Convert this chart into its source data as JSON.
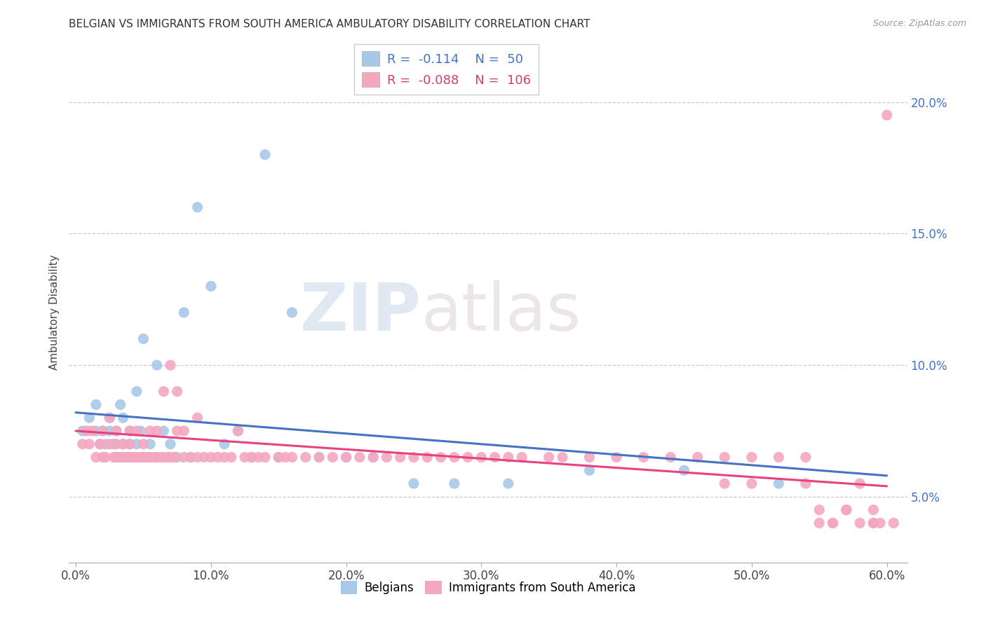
{
  "title": "BELGIAN VS IMMIGRANTS FROM SOUTH AMERICA AMBULATORY DISABILITY CORRELATION CHART",
  "source": "Source: ZipAtlas.com",
  "ylabel_label": "Ambulatory Disability",
  "watermark_zip": "ZIP",
  "watermark_atlas": "atlas",
  "xlim": [
    -0.005,
    0.615
  ],
  "ylim": [
    0.025,
    0.215
  ],
  "xtick_values": [
    0.0,
    0.1,
    0.2,
    0.3,
    0.4,
    0.5,
    0.6
  ],
  "ytick_values": [
    0.05,
    0.1,
    0.15,
    0.2
  ],
  "belgian_color": "#a8c8e8",
  "sa_color": "#f4a8c0",
  "belgian_R": -0.114,
  "belgian_N": 50,
  "sa_R": -0.088,
  "sa_N": 106,
  "belgian_line_color": "#4472c4",
  "sa_line_color": "#e84080",
  "legend_label_1": "Belgians",
  "legend_label_2": "Immigrants from South America",
  "belgian_points_x": [
    0.005,
    0.01,
    0.015,
    0.015,
    0.018,
    0.02,
    0.022,
    0.025,
    0.025,
    0.028,
    0.03,
    0.03,
    0.032,
    0.033,
    0.035,
    0.035,
    0.038,
    0.04,
    0.04,
    0.042,
    0.045,
    0.045,
    0.048,
    0.05,
    0.05,
    0.055,
    0.06,
    0.06,
    0.065,
    0.07,
    0.075,
    0.08,
    0.085,
    0.09,
    0.1,
    0.11,
    0.12,
    0.13,
    0.14,
    0.15,
    0.16,
    0.18,
    0.2,
    0.22,
    0.25,
    0.28,
    0.32,
    0.38,
    0.45,
    0.52
  ],
  "belgian_points_y": [
    0.075,
    0.08,
    0.075,
    0.085,
    0.07,
    0.075,
    0.07,
    0.075,
    0.08,
    0.07,
    0.065,
    0.075,
    0.065,
    0.085,
    0.07,
    0.08,
    0.065,
    0.07,
    0.075,
    0.065,
    0.07,
    0.09,
    0.075,
    0.065,
    0.11,
    0.07,
    0.065,
    0.1,
    0.075,
    0.07,
    0.065,
    0.12,
    0.065,
    0.16,
    0.13,
    0.07,
    0.075,
    0.065,
    0.18,
    0.065,
    0.12,
    0.065,
    0.065,
    0.065,
    0.055,
    0.055,
    0.055,
    0.06,
    0.06,
    0.055
  ],
  "sa_points_x": [
    0.005,
    0.008,
    0.01,
    0.012,
    0.015,
    0.018,
    0.02,
    0.02,
    0.022,
    0.025,
    0.025,
    0.028,
    0.03,
    0.03,
    0.03,
    0.033,
    0.035,
    0.035,
    0.038,
    0.04,
    0.04,
    0.04,
    0.043,
    0.045,
    0.045,
    0.048,
    0.05,
    0.05,
    0.053,
    0.055,
    0.055,
    0.058,
    0.06,
    0.06,
    0.063,
    0.065,
    0.065,
    0.068,
    0.07,
    0.07,
    0.073,
    0.075,
    0.075,
    0.08,
    0.08,
    0.085,
    0.09,
    0.09,
    0.095,
    0.1,
    0.105,
    0.11,
    0.115,
    0.12,
    0.125,
    0.13,
    0.135,
    0.14,
    0.15,
    0.155,
    0.16,
    0.17,
    0.18,
    0.19,
    0.2,
    0.21,
    0.22,
    0.23,
    0.24,
    0.25,
    0.26,
    0.27,
    0.28,
    0.29,
    0.3,
    0.31,
    0.32,
    0.33,
    0.35,
    0.36,
    0.38,
    0.4,
    0.42,
    0.44,
    0.46,
    0.48,
    0.5,
    0.52,
    0.54,
    0.55,
    0.56,
    0.57,
    0.58,
    0.59,
    0.6,
    0.48,
    0.5,
    0.54,
    0.57,
    0.59,
    0.56,
    0.58,
    0.595,
    0.605,
    0.55,
    0.59
  ],
  "sa_points_y": [
    0.07,
    0.075,
    0.07,
    0.075,
    0.065,
    0.07,
    0.065,
    0.075,
    0.065,
    0.07,
    0.08,
    0.065,
    0.065,
    0.07,
    0.075,
    0.065,
    0.065,
    0.07,
    0.065,
    0.065,
    0.07,
    0.075,
    0.065,
    0.065,
    0.075,
    0.065,
    0.065,
    0.07,
    0.065,
    0.065,
    0.075,
    0.065,
    0.065,
    0.075,
    0.065,
    0.065,
    0.09,
    0.065,
    0.065,
    0.1,
    0.065,
    0.075,
    0.09,
    0.065,
    0.075,
    0.065,
    0.065,
    0.08,
    0.065,
    0.065,
    0.065,
    0.065,
    0.065,
    0.075,
    0.065,
    0.065,
    0.065,
    0.065,
    0.065,
    0.065,
    0.065,
    0.065,
    0.065,
    0.065,
    0.065,
    0.065,
    0.065,
    0.065,
    0.065,
    0.065,
    0.065,
    0.065,
    0.065,
    0.065,
    0.065,
    0.065,
    0.065,
    0.065,
    0.065,
    0.065,
    0.065,
    0.065,
    0.065,
    0.065,
    0.065,
    0.065,
    0.065,
    0.065,
    0.065,
    0.04,
    0.04,
    0.045,
    0.04,
    0.04,
    0.195,
    0.055,
    0.055,
    0.055,
    0.045,
    0.045,
    0.04,
    0.055,
    0.04,
    0.04,
    0.045,
    0.04
  ]
}
